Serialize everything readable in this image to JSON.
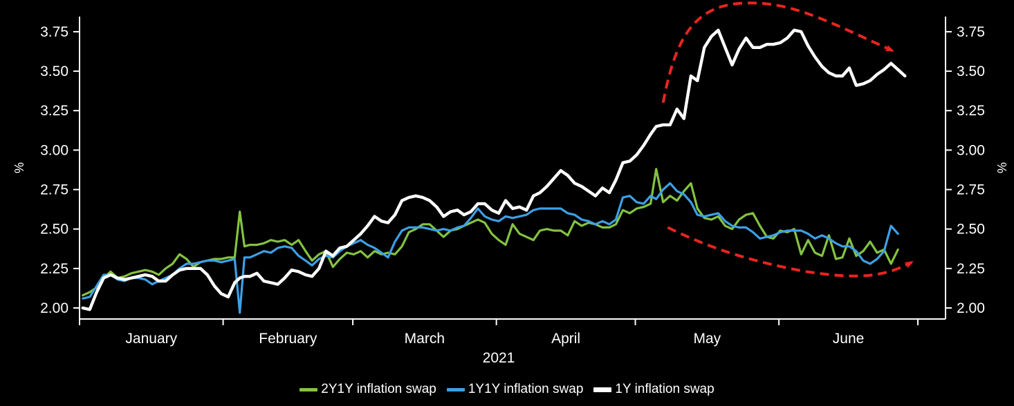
{
  "chart_data": {
    "type": "line",
    "title": "",
    "colors": {
      "background": "#000000",
      "axis": "#ffffff",
      "text": "#ffffff",
      "annotation_red": "#e8251f"
    },
    "x_axis": {
      "year_label": "2021",
      "start_date": "2021-01-01",
      "total_days": 181,
      "unit": "x_days = days since Jan 1, 2021",
      "months": [
        {
          "label": "January",
          "days": 31
        },
        {
          "label": "February",
          "days": 28
        },
        {
          "label": "March",
          "days": 31
        },
        {
          "label": "April",
          "days": 30
        },
        {
          "label": "May",
          "days": 31
        },
        {
          "label": "June",
          "days": 30
        }
      ]
    },
    "y_axis": {
      "label_left": "%",
      "label_right": "%",
      "unit": "percent",
      "ylim": [
        1.93,
        3.846
      ],
      "grid": false,
      "ticks": [
        {
          "label": "2.00",
          "value": 2.0
        },
        {
          "label": "2.25",
          "value": 2.25
        },
        {
          "label": "2.50",
          "value": 2.5
        },
        {
          "label": "2.75",
          "value": 2.75
        },
        {
          "label": "3.00",
          "value": 3.0
        },
        {
          "label": "3.25",
          "value": 3.25
        },
        {
          "label": "3.50",
          "value": 3.5
        },
        {
          "label": "3.75",
          "value": 3.75
        }
      ]
    },
    "legend_position": "bottom-center",
    "x_days": [
      0.7,
      2.2,
      3.7,
      5.2,
      6.7,
      8.2,
      9.7,
      11.2,
      12.7,
      14.2,
      15.7,
      17.1,
      18.6,
      20.1,
      21.6,
      23.1,
      24.6,
      26.1,
      27.6,
      29.1,
      30.6,
      32.1,
      33.5,
      34.6,
      35.6,
      36.8,
      38.3,
      39.8,
      41.3,
      42.8,
      44.3,
      45.8,
      47.3,
      48.8,
      50.2,
      51.7,
      53.2,
      54.7,
      56.2,
      57.7,
      59.2,
      60.7,
      62.2,
      63.7,
      65.2,
      66.6,
      68.1,
      69.6,
      71.1,
      72.6,
      74.1,
      75.6,
      77.1,
      78.6,
      80.1,
      81.6,
      83.0,
      84.5,
      86.0,
      87.5,
      89.0,
      90.5,
      92.0,
      93.5,
      95.0,
      96.5,
      98.0,
      99.4,
      100.9,
      102.4,
      103.9,
      105.4,
      106.9,
      108.4,
      109.9,
      111.4,
      112.9,
      114.4,
      115.8,
      117.3,
      118.8,
      120.3,
      121.8,
      123.3,
      124.5,
      126.0,
      127.5,
      129.0,
      130.5,
      132.0,
      133.4,
      134.9,
      136.4,
      137.9,
      139.4,
      140.9,
      142.4,
      143.9,
      145.4,
      146.9,
      148.4,
      149.8,
      151.3,
      152.8,
      154.3,
      155.8,
      157.3,
      158.8,
      160.3,
      161.8,
      163.3,
      164.7,
      166.2,
      167.7,
      169.2,
      170.7,
      172.2,
      173.7,
      175.2,
      176.7,
      178.2
    ],
    "series": [
      {
        "id": "2y1y",
        "name": "2Y1Y inflation swap",
        "color": "#84c340",
        "line_width": 3.2,
        "legend_marker_thickness": 5,
        "values": [
          2.08,
          2.1,
          2.13,
          2.19,
          2.23,
          2.19,
          2.2,
          2.22,
          2.23,
          2.24,
          2.23,
          2.21,
          2.25,
          2.28,
          2.34,
          2.31,
          2.26,
          2.29,
          2.3,
          2.31,
          2.31,
          2.32,
          2.32,
          2.61,
          2.39,
          2.4,
          2.4,
          2.41,
          2.43,
          2.42,
          2.43,
          2.4,
          2.43,
          2.36,
          2.3,
          2.34,
          2.36,
          2.26,
          2.31,
          2.35,
          2.34,
          2.36,
          2.32,
          2.36,
          2.34,
          2.35,
          2.34,
          2.39,
          2.48,
          2.5,
          2.53,
          2.53,
          2.49,
          2.45,
          2.49,
          2.5,
          2.52,
          2.54,
          2.56,
          2.54,
          2.47,
          2.43,
          2.4,
          2.53,
          2.47,
          2.45,
          2.43,
          2.49,
          2.5,
          2.49,
          2.49,
          2.46,
          2.55,
          2.52,
          2.54,
          2.53,
          2.51,
          2.51,
          2.53,
          2.62,
          2.6,
          2.63,
          2.64,
          2.66,
          2.88,
          2.67,
          2.71,
          2.68,
          2.74,
          2.79,
          2.63,
          2.57,
          2.56,
          2.58,
          2.52,
          2.5,
          2.56,
          2.59,
          2.6,
          2.52,
          2.45,
          2.44,
          2.49,
          2.48,
          2.5,
          2.34,
          2.43,
          2.35,
          2.33,
          2.46,
          2.31,
          2.32,
          2.44,
          2.33,
          2.36,
          2.42,
          2.35,
          2.37,
          2.28,
          2.37,
          null
        ]
      },
      {
        "id": "1y1y",
        "name": "1Y1Y inflation swap",
        "color": "#3da0e6",
        "line_width": 3.2,
        "legend_marker_thickness": 5,
        "values": [
          2.06,
          2.07,
          2.14,
          2.21,
          2.21,
          2.18,
          2.17,
          2.19,
          2.19,
          2.18,
          2.15,
          2.17,
          2.19,
          2.21,
          2.25,
          2.28,
          2.28,
          2.29,
          2.3,
          2.3,
          2.29,
          2.3,
          2.31,
          1.97,
          2.32,
          2.32,
          2.34,
          2.36,
          2.35,
          2.38,
          2.39,
          2.38,
          2.33,
          2.3,
          2.27,
          2.31,
          2.33,
          2.32,
          2.36,
          2.39,
          2.41,
          2.43,
          2.4,
          2.38,
          2.35,
          2.32,
          2.42,
          2.49,
          2.51,
          2.51,
          2.51,
          2.5,
          2.49,
          2.5,
          2.49,
          2.51,
          2.52,
          2.57,
          2.63,
          2.58,
          2.56,
          2.55,
          2.58,
          2.57,
          2.58,
          2.59,
          2.62,
          2.63,
          2.63,
          2.63,
          2.63,
          2.6,
          2.59,
          2.56,
          2.55,
          2.53,
          2.55,
          2.53,
          2.56,
          2.7,
          2.71,
          2.67,
          2.66,
          2.71,
          2.69,
          2.75,
          2.79,
          2.74,
          2.72,
          2.67,
          2.59,
          2.58,
          2.59,
          2.6,
          2.55,
          2.52,
          2.51,
          2.51,
          2.48,
          2.44,
          2.45,
          2.46,
          2.48,
          2.49,
          2.49,
          2.49,
          2.47,
          2.44,
          2.46,
          2.44,
          2.41,
          2.39,
          2.39,
          2.36,
          2.3,
          2.28,
          2.31,
          2.36,
          2.52,
          2.47,
          null
        ]
      },
      {
        "id": "1y",
        "name": "1Y inflation swap",
        "color": "#ffffff",
        "line_width": 4.4,
        "legend_marker_thickness": 7,
        "values": [
          2.0,
          1.99,
          2.1,
          2.19,
          2.21,
          2.19,
          2.18,
          2.19,
          2.2,
          2.21,
          2.2,
          2.17,
          2.17,
          2.21,
          2.24,
          2.25,
          2.25,
          2.25,
          2.21,
          2.14,
          2.09,
          2.07,
          2.16,
          2.19,
          2.2,
          2.2,
          2.22,
          2.17,
          2.16,
          2.15,
          2.19,
          2.24,
          2.23,
          2.21,
          2.2,
          2.25,
          2.36,
          2.33,
          2.38,
          2.39,
          2.43,
          2.47,
          2.52,
          2.58,
          2.55,
          2.54,
          2.59,
          2.68,
          2.7,
          2.71,
          2.7,
          2.68,
          2.64,
          2.58,
          2.61,
          2.62,
          2.59,
          2.61,
          2.66,
          2.66,
          2.62,
          2.6,
          2.68,
          2.63,
          2.64,
          2.62,
          2.71,
          2.73,
          2.77,
          2.82,
          2.87,
          2.84,
          2.79,
          2.77,
          2.74,
          2.71,
          2.76,
          2.73,
          2.81,
          2.92,
          2.93,
          2.97,
          3.03,
          3.1,
          3.15,
          3.16,
          3.16,
          3.26,
          3.2,
          3.47,
          3.44,
          3.65,
          3.72,
          3.76,
          3.65,
          3.54,
          3.64,
          3.71,
          3.65,
          3.65,
          3.67,
          3.67,
          3.68,
          3.71,
          3.76,
          3.75,
          3.66,
          3.59,
          3.53,
          3.49,
          3.47,
          3.47,
          3.52,
          3.41,
          3.42,
          3.44,
          3.48,
          3.51,
          3.55,
          3.51,
          3.47
        ]
      }
    ],
    "annotations": [
      {
        "id": "arrow-up-then-over",
        "shape": "dashed-arrow-arc",
        "description": "red dashed arc over the 1Y swap: sharp rise into May, rolling over through June",
        "color": "#e8251f",
        "line_width": 4,
        "dash": "13 8",
        "points_day_value": [
          [
            126.0,
            3.3
          ],
          [
            128.5,
            3.69
          ],
          [
            132.3,
            3.91
          ],
          [
            142.7,
            3.93
          ],
          [
            153.1,
            3.95
          ],
          [
            160.6,
            3.83
          ],
          [
            175.5,
            3.63
          ]
        ]
      },
      {
        "id": "arrow-drift-lower",
        "shape": "dashed-arrow-arc",
        "description": "red dashed arc under 2Y1Y/1Y1Y swaps: gradual drift lower through June with uptick at the end",
        "color": "#e8251f",
        "line_width": 4,
        "dash": "13 8",
        "points_day_value": [
          [
            127.0,
            2.51
          ],
          [
            136.7,
            2.37
          ],
          [
            145.7,
            2.29
          ],
          [
            156.9,
            2.23
          ],
          [
            166.5,
            2.19
          ],
          [
            172.8,
            2.18
          ],
          [
            179.7,
            2.29
          ]
        ]
      }
    ]
  }
}
